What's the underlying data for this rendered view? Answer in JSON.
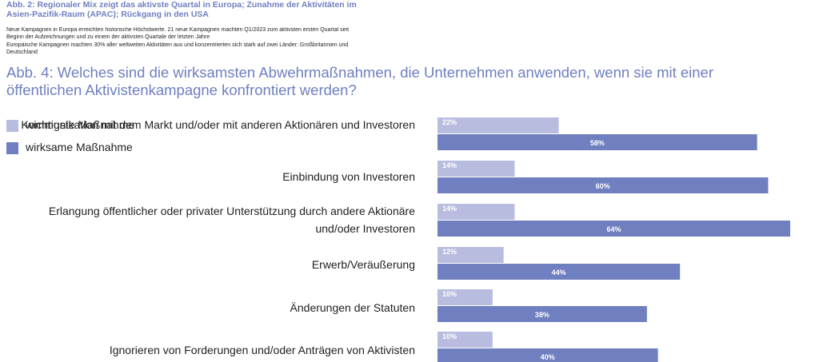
{
  "background": {
    "caption": "Abb. 2: Regionaler Mix zeigt das aktivste Quartal in Europa; Zunahme der Aktivitäten im Asien-Pazifik-Raum (APAC); Rückgang in den USA",
    "bullets": [
      "Neue Kampagnen in Europa erreichten historische Höchstwerte. 21 neue Kampagnen machten Q1/2023 zum aktivsten ersten Quartal seit Beginn der Aufzeichnungen und zu einem der aktivsten Quartale der letzten Jahre",
      "Europäische Kampagnen machten 30% aller weltweiten Aktivitäten aus und konzentrierten sich stark auf zwei Länder: Großbritannien und Deutschland"
    ]
  },
  "colors": {
    "title": "#6f7fc0",
    "series_light": "#b8bde0",
    "series_dark": "#6f7fc0"
  },
  "chart_data": {
    "type": "bar",
    "orientation": "horizontal",
    "title": "Abb. 4: Welches sind die wirksamsten Abwehrmaßnahmen, die Unternehmen anwenden, wenn sie mit einer öffentlichen Aktivistenkampagne konfrontiert werden?",
    "categories": [
      "Kommunikation mit dem Markt und/oder mit anderen Aktionären und Investoren",
      "Einbindung von Investoren",
      "Erlangung öffentlicher oder privater Unterstützung durch andere Aktionäre und/oder Investoren",
      "Erwerb/Veräußerung",
      "Änderungen der Statuten",
      "Ignorieren von Forderungen und/oder Anträgen von Aktivisten"
    ],
    "series": [
      {
        "name": "wichtigste Maßnahme",
        "values": [
          22,
          14,
          14,
          12,
          10,
          10
        ],
        "labels": [
          "22%",
          "14%",
          "14%",
          "12%",
          "10%",
          "10%"
        ]
      },
      {
        "name": "wirksame Maßnahme",
        "values": [
          58,
          60,
          64,
          44,
          38,
          40
        ],
        "labels": [
          "58%",
          "60%",
          "64%",
          "44%",
          "38%",
          "40%"
        ]
      }
    ],
    "xlim": [
      0,
      64
    ],
    "legend_position": "top-left",
    "grid": false
  }
}
